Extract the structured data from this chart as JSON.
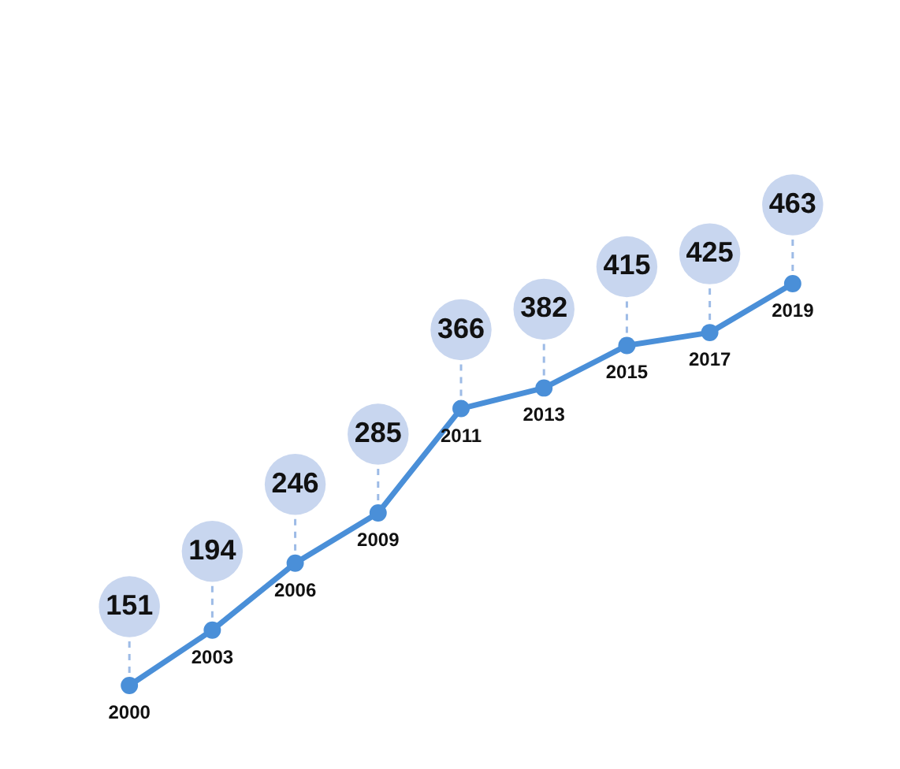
{
  "chart_data": {
    "type": "line",
    "categories": [
      "2000",
      "2003",
      "2006",
      "2009",
      "2011",
      "2013",
      "2015",
      "2017",
      "2019"
    ],
    "values": [
      151,
      194,
      246,
      285,
      366,
      382,
      415,
      425,
      463
    ],
    "color": "#4a8fd8",
    "marker": "circle",
    "data_labels": true
  }
}
